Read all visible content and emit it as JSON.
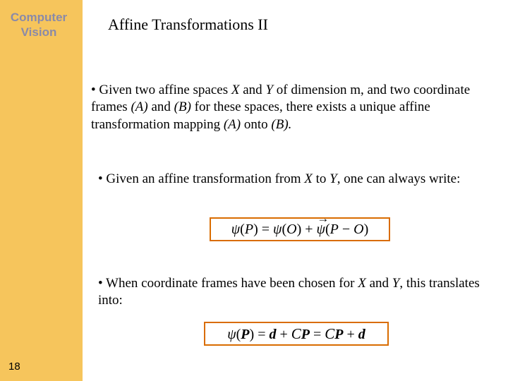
{
  "sidebar": {
    "title_line1": "Computer",
    "title_line2": "Vision",
    "bg_color": "#f6c55c",
    "title_color": "#8a8aa8"
  },
  "slide_number": "18",
  "title": "Affine Transformations II",
  "bullets": {
    "b1_pre": "• Given two affine spaces ",
    "b1_X": "X",
    "b1_mid1": " and ",
    "b1_Y": "Y",
    "b1_mid2": " of dimension m, and two coordinate frames ",
    "b1_A": "(A)",
    "b1_mid3": " and ",
    "b1_B": "(B)",
    "b1_mid4": " for these spaces, there exists a unique affine transformation mapping ",
    "b1_A2": "(A)",
    "b1_mid5": " onto ",
    "b1_B2": "(B).",
    "b2_pre": "• Given an affine transformation from ",
    "b2_X": "X",
    "b2_mid1": " to ",
    "b2_Y": "Y",
    "b2_post": ",  one can always write:",
    "b3_pre": "• When coordinate frames have been chosen for ",
    "b3_X": "X",
    "b3_mid": " and ",
    "b3_Y": "Y",
    "b3_post": ", this translates into:"
  },
  "equations": {
    "eq1": {
      "psi": "ψ",
      "P": "P",
      "eq": " = ",
      "O": "O",
      "plus": " + ",
      "minus": " − ",
      "lpar": "(",
      "rpar": ")",
      "border_color": "#d96c00"
    },
    "eq2": {
      "psi": "ψ",
      "P": "P",
      "eq": " = ",
      "d": "d",
      "plus": " + ",
      "C": "C",
      "border_color": "#d96c00"
    }
  },
  "colors": {
    "eq_border": "#d96c00",
    "text": "#000000",
    "bg": "#ffffff"
  }
}
